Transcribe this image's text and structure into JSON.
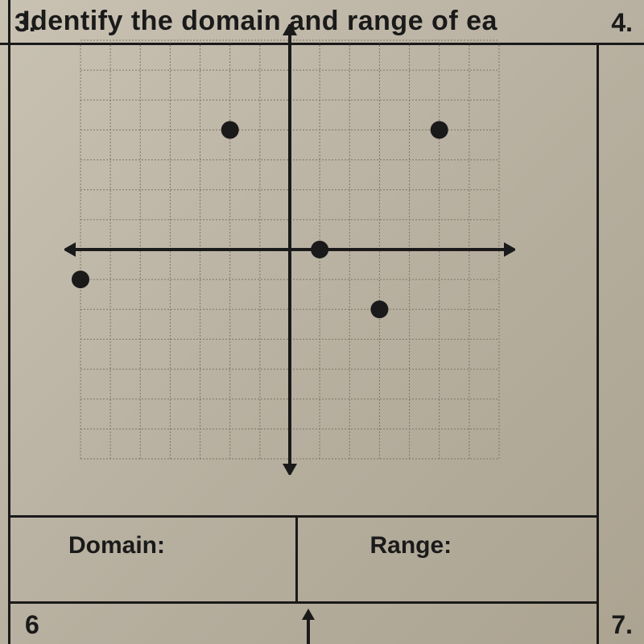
{
  "header": {
    "instruction": "Identify the domain and range of ea"
  },
  "problems": {
    "p3": {
      "number": "3."
    },
    "p4": {
      "number": "4."
    },
    "p6": {
      "number": "6"
    },
    "p7": {
      "number": "7."
    }
  },
  "answer_labels": {
    "domain": "Domain:",
    "range": "Range:"
  },
  "graph": {
    "type": "scatter",
    "grid": {
      "xmin": -7,
      "xmax": 7,
      "ymin": -7,
      "ymax": 7,
      "step": 1,
      "line_color": "#7d7768",
      "axis_color": "#1a1a1a",
      "axis_width": 4,
      "grid_width": 1
    },
    "points": [
      {
        "x": -7,
        "y": -1
      },
      {
        "x": -2,
        "y": 4
      },
      {
        "x": 1,
        "y": 0
      },
      {
        "x": 3,
        "y": -2
      },
      {
        "x": 5,
        "y": 4
      }
    ],
    "point_color": "#1a1a1a",
    "point_radius": 11
  }
}
